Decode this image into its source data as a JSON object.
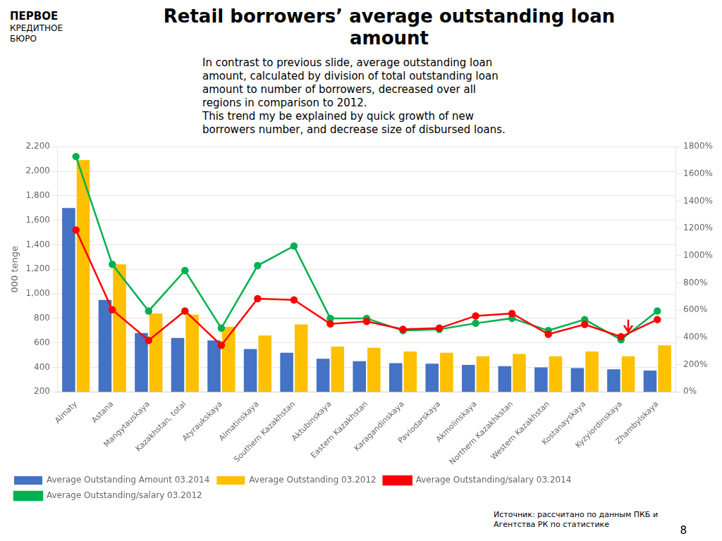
{
  "chart_data": {
    "type": "bar",
    "title": "Retail borrowers’ average outstanding loan\namount",
    "categories": [
      "Almaty",
      "Astana",
      "Mangytauskaya",
      "Kazakhstan, total",
      "Atyraukskaya",
      "Almatinskaya",
      "Southern Kazakhstan",
      "Aktubinskaya",
      "Eastern Kazakhstan",
      "Karagandinskaya",
      "Pavlodarskaya",
      "Akmolinskaya",
      "Northern Kazakhkstan",
      "Western Kazakhstan",
      "Kostanayskaya",
      "Kyzylordinskaya",
      "Zhambylskaya"
    ],
    "series": [
      {
        "name": "Average Outstanding Amount 03.2014",
        "type": "bar",
        "color": "#4472C4",
        "values": [
          1700,
          950,
          680,
          640,
          620,
          550,
          520,
          470,
          450,
          435,
          430,
          420,
          410,
          400,
          395,
          385,
          375
        ]
      },
      {
        "name": "Average Outstanding 03.2012",
        "type": "bar",
        "color": "#FFC000",
        "values": [
          2090,
          1240,
          840,
          830,
          730,
          660,
          750,
          570,
          560,
          530,
          520,
          490,
          510,
          490,
          530,
          490,
          580
        ]
      },
      {
        "name": "Average Outstanding/salary 03.2014",
        "type": "line",
        "marker": "circle",
        "color": "#FF0000",
        "values": [
          1520,
          870,
          620,
          860,
          580,
          960,
          950,
          755,
          775,
          710,
          720,
          820,
          840,
          670,
          750,
          650,
          790
        ]
      },
      {
        "name": "Average Outstanding/salary 03.2012",
        "type": "line",
        "marker": "circle",
        "color": "#00B050",
        "values": [
          2120,
          1240,
          860,
          1190,
          720,
          1230,
          1390,
          800,
          800,
          700,
          710,
          760,
          800,
          700,
          790,
          625,
          860
        ]
      }
    ],
    "ylabel": "000 tenge",
    "ylim": [
      200,
      2200
    ],
    "yticks": [
      200,
      400,
      600,
      800,
      {
        "value": 1000,
        "label": "1,000"
      },
      {
        "value": 1200,
        "label": "1,200"
      },
      {
        "value": 1400,
        "label": "1,400"
      },
      {
        "value": 1600,
        "label": "1,600"
      },
      {
        "value": 1800,
        "label": "1,800"
      },
      {
        "value": 2000,
        "label": "2,000"
      },
      {
        "value": 2200,
        "label": "2,200"
      }
    ],
    "y2lim": [
      0,
      1800
    ],
    "y2ticks": [
      {
        "value": 0,
        "label": "0%"
      },
      {
        "value": 200,
        "label": "200%"
      },
      {
        "value": 400,
        "label": "400%"
      },
      {
        "value": 600,
        "label": "600%"
      },
      {
        "value": 800,
        "label": "800%"
      },
      {
        "value": 1000,
        "label": "1000%"
      },
      {
        "value": 1200,
        "label": "1200%"
      },
      {
        "value": 1400,
        "label": "1400%"
      },
      {
        "value": 1600,
        "label": "1600%"
      },
      {
        "value": 1800,
        "label": "1800%"
      }
    ],
    "grid": true,
    "legend": "lower left",
    "arrows": [
      {
        "x": 15.2,
        "from": 790,
        "to": 690,
        "color": "red"
      }
    ],
    "annotations": {
      "note": [
        "In contrast to previous slide, average outstanding loan",
        "amount, calculated by division of total outstanding loan",
        "amount to number of borrowers, decreased over all",
        "regions in comparison to 2012.",
        "This trend my be explained by quick growth of new",
        "borrowers number, and decrease size of disbursed loans."
      ],
      "source": "Источник: рассчитано по данным ПКБ и\nАгентства РК по статистике",
      "page": "8",
      "logo": [
        "ПЕРВОЕ",
        "КРЕДИТНОЕ",
        "БЮРО"
      ]
    }
  }
}
